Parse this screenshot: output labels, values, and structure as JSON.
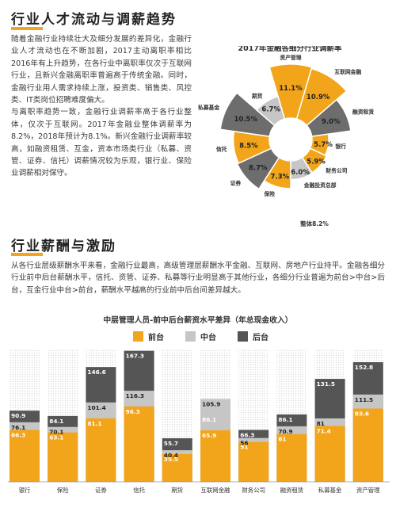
{
  "section1": {
    "title": "行业人才流动与调薪趋势",
    "paragraphs": [
      "随着金融行业持续壮大及细分发展的差异化，金融行业人才流动也在不断加剧，2017主动离职率相比2016年有上升趋势，在各行业中离职率仅次于互联网行业，且新兴金融离职率普遍高于传统金融。同时，金融行业用人需求持续上涨，投资类、销售类、风控类、IT类岗位招聘难度偏大。",
      "与离职率趋势一致，金融行业调薪率高于各行业整体，仅次于互联网。2017年金融业整体调薪率为8.2%，2018年预计为8.1%。新兴金融行业调薪率较高，如融资租赁、互金，资本市场类行业（私募、资管、证券、信托）调薪情况较为乐观，银行业、保险业调薪相对保守。"
    ]
  },
  "pie_chart": {
    "chart_data": {
      "type": "pie",
      "title": "2017年金融各细分行业调薪率",
      "center_label": "整体8.2%",
      "slices": [
        {
          "label": "资产管理",
          "value": 11.1,
          "value_label": "11.1%",
          "color": "#f2a51a"
        },
        {
          "label": "互联网金融",
          "value": 10.9,
          "value_label": "10.9%",
          "color": "#f2a51a"
        },
        {
          "label": "融资租赁",
          "value": 9.0,
          "value_label": "9.0%",
          "color": "#6d6d6d"
        },
        {
          "label": "银行",
          "value": 5.7,
          "value_label": "5.7%",
          "color": "#f2a51a"
        },
        {
          "label": "财务公司",
          "value": 5.9,
          "value_label": "5.9%",
          "color": "#f2a51a"
        },
        {
          "label": "金融投资总部",
          "value": 6.0,
          "value_label": "6.0%",
          "color": "#c6c6c6"
        },
        {
          "label": "保险",
          "value": 7.3,
          "value_label": "7.3%",
          "color": "#f2a51a"
        },
        {
          "label": "证券",
          "value": 8.7,
          "value_label": "8.7%",
          "color": "#6d6d6d"
        },
        {
          "label": "信托",
          "value": 8.5,
          "value_label": "8.5%",
          "color": "#f2a51a"
        },
        {
          "label": "私募基金",
          "value": 10.5,
          "value_label": "10.5%",
          "color": "#6d6d6d"
        },
        {
          "label": "期货",
          "value": 6.7,
          "value_label": "6.7%",
          "color": "#c6c6c6"
        }
      ]
    }
  },
  "section2": {
    "title": "行业薪酬与激励",
    "paragraph": "从各行业层级薪酬水平来看，金融行业最高，高级管理层薪酬水平金融、互联网、房地产行业持平。金融各细分行业前中后台薪酬水平，信托、资管、证券、私募等行业明显高于其他行业，各细分行业普遍为前台>中台>后台，互金行业中台>前台，薪酬水平越高的行业前中后台间差异越大。"
  },
  "bar_chart": {
    "chart_data": {
      "type": "bar",
      "title": "中层管理人员-前中后台薪资水平差异（年总现金收入）",
      "categories": [
        "银行",
        "保险",
        "证券",
        "信托",
        "期货",
        "互联网金融",
        "财务公司",
        "融资租赁",
        "私募基金",
        "资产管理"
      ],
      "series": [
        {
          "name": "前台",
          "color": "#f2a51a",
          "values": [
            66.3,
            63.1,
            81.1,
            96.3,
            35.5,
            65.9,
            51,
            61,
            71.4,
            93.6
          ]
        },
        {
          "name": "中台",
          "color": "#c6c6c6",
          "values": [
            76.1,
            70.1,
            101.4,
            116.3,
            40.4,
            105.9,
            56,
            70.9,
            81,
            111.5
          ]
        },
        {
          "name": "后台",
          "color": "#555555",
          "values": [
            90.9,
            84.1,
            146.6,
            167.3,
            55.7,
            86.1,
            66.3,
            86.1,
            131.5,
            152.8
          ]
        }
      ],
      "value_labels": [
        [
          "66.3",
          "76.1",
          "90.9"
        ],
        [
          "63.1",
          "70.1",
          "84.1"
        ],
        [
          "81.1",
          "101.4",
          "146.6"
        ],
        [
          "96.3",
          "116.3",
          "167.3"
        ],
        [
          "35.5",
          "40.4",
          "55.7"
        ],
        [
          "65.9",
          "105.9",
          "86.1"
        ],
        [
          "51",
          "56",
          "66.3"
        ],
        [
          "61",
          "70.9",
          "86.1"
        ],
        [
          "71.4",
          "81",
          "131.5"
        ],
        [
          "93.6",
          "111.5",
          "152.8"
        ]
      ],
      "ylim": [
        0,
        170
      ],
      "legend_position": "top-center"
    }
  }
}
